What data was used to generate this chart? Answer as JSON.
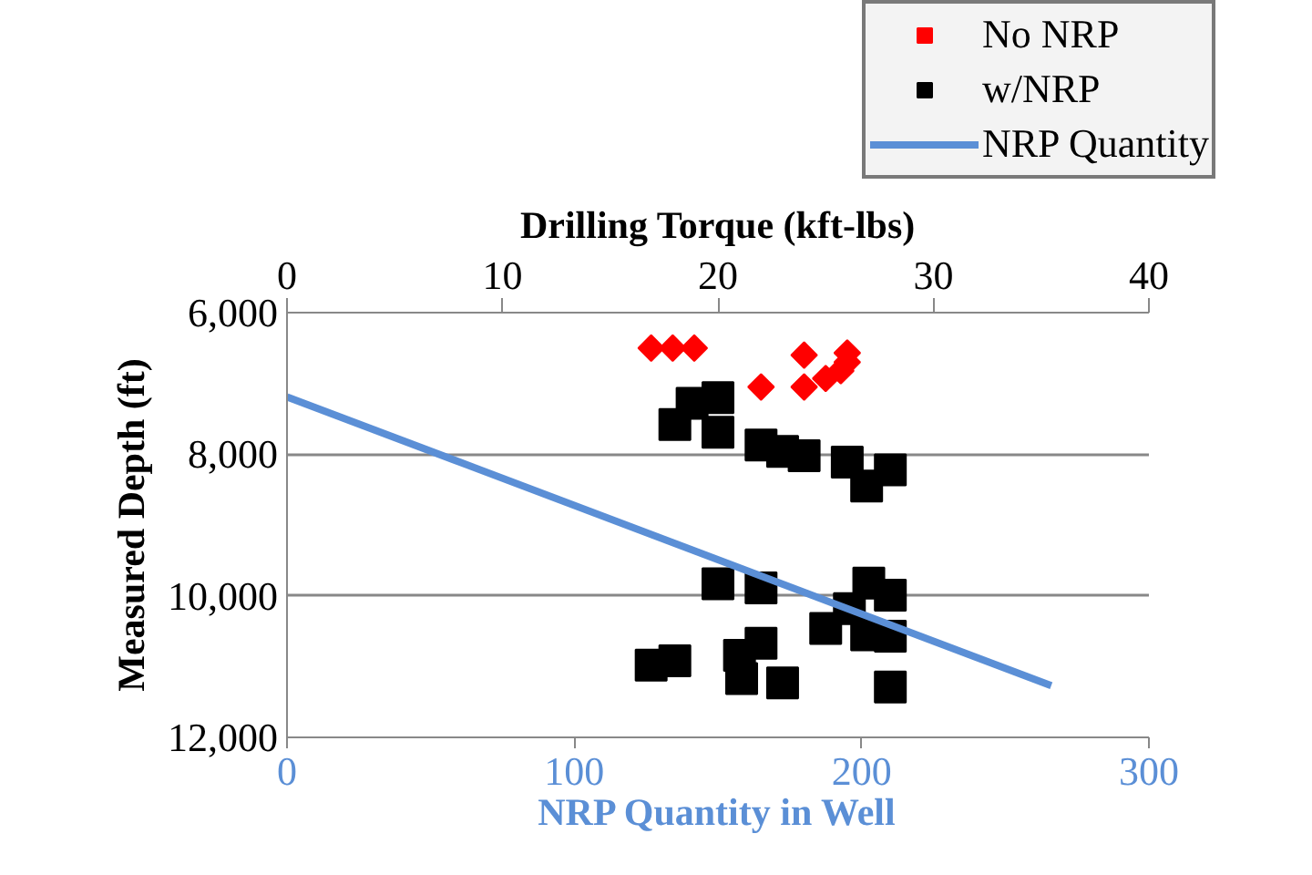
{
  "chart_data": {
    "type": "scatter",
    "xlabel": "NRP Quantity in Well",
    "x2label": "Drilling Torque (kft-lbs)",
    "ylabel": "Measured Depth (ft)",
    "xlim": [
      0,
      300
    ],
    "xticks": [
      0,
      100,
      200,
      300
    ],
    "x2lim": [
      0,
      40
    ],
    "x2ticks": [
      0,
      10,
      20,
      30,
      40
    ],
    "ylim": [
      12000,
      6000
    ],
    "yticks": [
      {
        "value": 6000,
        "label": "6,000"
      },
      {
        "value": 8000,
        "label": "8,000"
      },
      {
        "value": 10000,
        "label": "10,000"
      },
      {
        "value": 12000,
        "label": "12,000"
      }
    ],
    "grid": "y",
    "legend": "top right",
    "series": [
      {
        "name": "No NRP",
        "color": "#ff0000",
        "marker": "diamond",
        "axis": "x2",
        "x": [
          16.9,
          17.9,
          18.9,
          24.0,
          26.0,
          22.0,
          24.0,
          25.0,
          25.7,
          26.0
        ],
        "values": [
          6500,
          6500,
          6500,
          6600,
          6570,
          7050,
          7050,
          6930,
          6820,
          6700
        ]
      },
      {
        "name": "w/NRP",
        "color": "#000000",
        "marker": "square",
        "axis": "x2",
        "x": [
          18.0,
          18.8,
          20.0,
          20.0,
          22.0,
          23.0,
          24.0,
          26.0,
          26.9,
          28.0,
          20.0,
          22.0,
          27.0,
          26.1,
          28.0,
          25.0,
          26.9,
          28.0,
          16.9,
          18.0,
          21.0,
          22.0,
          21.1,
          23.0,
          28.0
        ],
        "values": [
          7580,
          7280,
          7200,
          7690,
          7870,
          7960,
          8020,
          8110,
          8450,
          8220,
          9830,
          9890,
          9820,
          10180,
          9990,
          10460,
          10550,
          10570,
          10980,
          10920,
          10840,
          10670,
          11170,
          11230,
          11290
        ]
      },
      {
        "name": "NRP Quantity",
        "color": "#5b8fd6",
        "type": "line",
        "x": [
          0,
          266
        ],
        "values": [
          7190,
          11270
        ]
      }
    ]
  }
}
